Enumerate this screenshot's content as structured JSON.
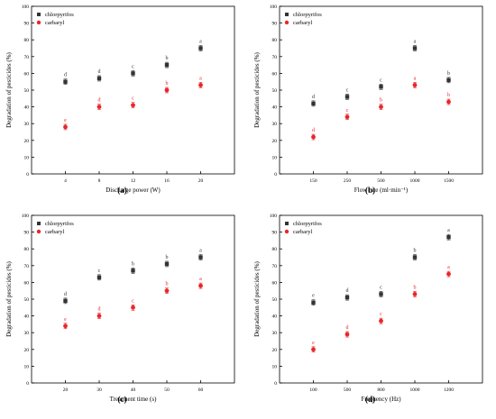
{
  "colors": {
    "chlorpyrifos": "#333333",
    "carbaryl": "#e8262b",
    "axis": "#000000"
  },
  "chart_data": [
    {
      "panel_label": "(a)",
      "type": "scatter",
      "xlabel": "Discharge power (W)",
      "ylabel": "Degradation of pesticides (%)",
      "ylim": [
        0,
        100
      ],
      "y_ticks": [
        0,
        10,
        20,
        30,
        40,
        50,
        60,
        70,
        80,
        90,
        100
      ],
      "categories": [
        "4",
        "8",
        "12",
        "16",
        "20"
      ],
      "legend_position": "top-left",
      "series": [
        {
          "name": "chlorpyrifos",
          "marker": "square",
          "color": "#333333",
          "values": [
            55,
            57,
            60,
            65,
            75
          ],
          "letters": [
            "d",
            "d",
            "c",
            "b",
            "a"
          ]
        },
        {
          "name": "carbaryl",
          "marker": "circle",
          "color": "#e8262b",
          "values": [
            28,
            40,
            41,
            50,
            53
          ],
          "letters": [
            "e",
            "d",
            "c",
            "b",
            "a"
          ]
        }
      ]
    },
    {
      "panel_label": "(b)",
      "type": "scatter",
      "xlabel": "Flow rate (ml·min⁻¹)",
      "ylabel": "Degradation of pesticides (%)",
      "ylim": [
        0,
        100
      ],
      "y_ticks": [
        0,
        10,
        20,
        30,
        40,
        50,
        60,
        70,
        80,
        90,
        100
      ],
      "categories": [
        "150",
        "250",
        "500",
        "1000",
        "1500"
      ],
      "legend_position": "top-left",
      "series": [
        {
          "name": "chlorpyrifos",
          "marker": "square",
          "color": "#333333",
          "values": [
            42,
            46,
            52,
            75,
            56
          ],
          "letters": [
            "d",
            "c",
            "c",
            "a",
            "b"
          ]
        },
        {
          "name": "carbaryl",
          "marker": "circle",
          "color": "#e8262b",
          "values": [
            22,
            34,
            40,
            53,
            43
          ],
          "letters": [
            "d",
            "c",
            "b",
            "a",
            "b"
          ]
        }
      ]
    },
    {
      "panel_label": "(c)",
      "type": "scatter",
      "xlabel": "Treatment time (s)",
      "ylabel": "Degradation of pesticides (%)",
      "ylim": [
        0,
        100
      ],
      "y_ticks": [
        0,
        10,
        20,
        30,
        40,
        50,
        60,
        70,
        80,
        90,
        100
      ],
      "categories": [
        "20",
        "30",
        "40",
        "50",
        "60"
      ],
      "legend_position": "top-left",
      "series": [
        {
          "name": "chlorpyrifos",
          "marker": "square",
          "color": "#333333",
          "values": [
            49,
            63,
            67,
            71,
            75
          ],
          "letters": [
            "d",
            "c",
            "b",
            "b",
            "a"
          ]
        },
        {
          "name": "carbaryl",
          "marker": "circle",
          "color": "#e8262b",
          "values": [
            34,
            40,
            45,
            55,
            58
          ],
          "letters": [
            "e",
            "d",
            "c",
            "b",
            "a"
          ]
        }
      ]
    },
    {
      "panel_label": "(d)",
      "type": "scatter",
      "xlabel": "Frequency (Hz)",
      "ylabel": "Degradation of pesticides (%)",
      "ylim": [
        0,
        100
      ],
      "y_ticks": [
        0,
        10,
        20,
        30,
        40,
        50,
        60,
        70,
        80,
        90,
        100
      ],
      "categories": [
        "100",
        "500",
        "800",
        "1000",
        "1200"
      ],
      "legend_position": "top-left",
      "series": [
        {
          "name": "chlorpyrifos",
          "marker": "square",
          "color": "#333333",
          "values": [
            48,
            51,
            53,
            75,
            87
          ],
          "letters": [
            "e",
            "d",
            "c",
            "b",
            "a"
          ]
        },
        {
          "name": "carbaryl",
          "marker": "circle",
          "color": "#e8262b",
          "values": [
            20,
            29,
            37,
            53,
            65
          ],
          "letters": [
            "e",
            "d",
            "c",
            "b",
            "a"
          ]
        }
      ]
    }
  ]
}
